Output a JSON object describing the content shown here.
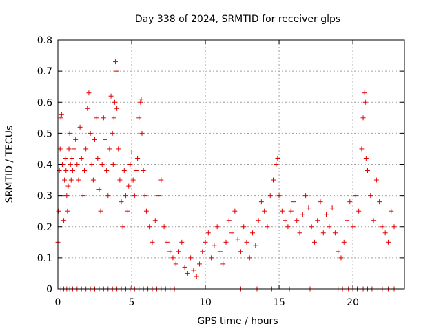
{
  "chart_data": {
    "type": "scatter",
    "title": "Day 338 of 2024, SRMTID for receiver glps",
    "xlabel": "GPS time / hours",
    "ylabel": "SRMTID / TECUs",
    "xlim": [
      0,
      23.5
    ],
    "ylim": [
      0,
      0.8
    ],
    "xticks": [
      0,
      5,
      10,
      15,
      20
    ],
    "yticks": [
      0,
      0.1,
      0.2,
      0.3,
      0.4,
      0.5,
      0.6,
      0.7,
      0.8
    ],
    "grid": true,
    "marker": "plus",
    "color": "#e00000",
    "series": [
      {
        "name": "SRMTID",
        "x": [
          0.0,
          0.05,
          0.1,
          0.15,
          0.2,
          0.25,
          0.3,
          0.35,
          0.4,
          0.45,
          0.5,
          0.55,
          0.6,
          0.65,
          0.7,
          0.75,
          0.8,
          0.85,
          0.9,
          0.95,
          1.0,
          1.1,
          1.2,
          1.3,
          1.4,
          1.5,
          1.6,
          1.7,
          1.8,
          1.9,
          2.0,
          2.1,
          2.2,
          2.3,
          2.4,
          2.5,
          2.6,
          2.7,
          2.8,
          2.9,
          3.0,
          3.1,
          3.2,
          3.3,
          3.4,
          3.5,
          3.6,
          3.7,
          3.75,
          3.8,
          3.85,
          3.9,
          3.95,
          4.0,
          4.1,
          4.2,
          4.3,
          4.4,
          4.5,
          4.6,
          4.7,
          4.8,
          4.9,
          5.0,
          5.1,
          5.2,
          5.3,
          5.4,
          5.5,
          5.6,
          5.65,
          5.7,
          5.8,
          5.9,
          6.0,
          6.2,
          6.4,
          6.6,
          6.8,
          7.0,
          7.2,
          7.4,
          7.6,
          7.8,
          8.0,
          8.2,
          8.4,
          8.6,
          8.8,
          9.0,
          9.2,
          9.4,
          9.6,
          9.8,
          10.0,
          10.2,
          10.4,
          10.6,
          10.8,
          11.0,
          11.2,
          11.4,
          11.6,
          11.8,
          12.0,
          12.2,
          12.4,
          12.6,
          12.8,
          13.0,
          13.2,
          13.4,
          13.6,
          13.8,
          14.0,
          14.2,
          14.4,
          14.6,
          14.8,
          14.9,
          15.0,
          15.2,
          15.4,
          15.6,
          15.8,
          16.0,
          16.2,
          16.4,
          16.6,
          16.8,
          17.0,
          17.2,
          17.4,
          17.6,
          17.8,
          18.0,
          18.2,
          18.4,
          18.6,
          18.8,
          19.0,
          19.2,
          19.4,
          19.6,
          19.8,
          20.0,
          20.2,
          20.4,
          20.6,
          20.7,
          20.8,
          20.85,
          20.9,
          21.0,
          21.2,
          21.4,
          21.6,
          21.8,
          22.0,
          22.2,
          22.4,
          22.6,
          22.8
        ],
        "y": [
          0.15,
          0.25,
          0.38,
          0.45,
          0.55,
          0.56,
          0.4,
          0.3,
          0.22,
          0.35,
          0.42,
          0.38,
          0.3,
          0.25,
          0.33,
          0.45,
          0.5,
          0.4,
          0.35,
          0.42,
          0.38,
          0.45,
          0.48,
          0.4,
          0.35,
          0.52,
          0.42,
          0.3,
          0.38,
          0.45,
          0.58,
          0.63,
          0.5,
          0.4,
          0.35,
          0.48,
          0.55,
          0.42,
          0.32,
          0.25,
          0.4,
          0.55,
          0.48,
          0.38,
          0.3,
          0.45,
          0.62,
          0.5,
          0.4,
          0.55,
          0.6,
          0.73,
          0.7,
          0.58,
          0.45,
          0.35,
          0.28,
          0.2,
          0.38,
          0.3,
          0.25,
          0.33,
          0.4,
          0.44,
          0.35,
          0.3,
          0.38,
          0.42,
          0.55,
          0.6,
          0.61,
          0.5,
          0.38,
          0.3,
          0.25,
          0.2,
          0.15,
          0.22,
          0.3,
          0.35,
          0.2,
          0.15,
          0.12,
          0.1,
          0.08,
          0.12,
          0.15,
          0.07,
          0.05,
          0.1,
          0.06,
          0.04,
          0.08,
          0.12,
          0.15,
          0.18,
          0.1,
          0.14,
          0.2,
          0.12,
          0.08,
          0.15,
          0.22,
          0.18,
          0.25,
          0.16,
          0.12,
          0.2,
          0.15,
          0.1,
          0.18,
          0.14,
          0.22,
          0.28,
          0.25,
          0.2,
          0.3,
          0.35,
          0.4,
          0.42,
          0.3,
          0.25,
          0.22,
          0.2,
          0.25,
          0.28,
          0.22,
          0.18,
          0.24,
          0.3,
          0.26,
          0.2,
          0.15,
          0.22,
          0.28,
          0.18,
          0.24,
          0.2,
          0.26,
          0.18,
          0.12,
          0.1,
          0.15,
          0.22,
          0.28,
          0.2,
          0.3,
          0.25,
          0.45,
          0.55,
          0.63,
          0.6,
          0.42,
          0.38,
          0.3,
          0.22,
          0.35,
          0.28,
          0.2,
          0.18,
          0.15,
          0.25,
          0.2
        ],
        "zero_x": [
          0.2,
          0.4,
          0.6,
          0.8,
          1.0,
          1.3,
          1.6,
          1.9,
          2.2,
          2.5,
          2.8,
          3.1,
          3.4,
          3.7,
          4.0,
          4.3,
          4.6,
          4.9,
          5.2,
          5.5,
          5.8,
          6.1,
          6.4,
          6.7,
          7.0,
          7.3,
          7.6,
          7.9,
          12.4,
          13.5,
          14.5,
          15.7,
          17.1,
          19.0,
          19.3,
          19.7,
          20.0,
          20.3,
          20.7,
          21.0,
          21.3,
          21.7,
          22.0,
          22.4,
          22.8
        ]
      }
    ]
  }
}
